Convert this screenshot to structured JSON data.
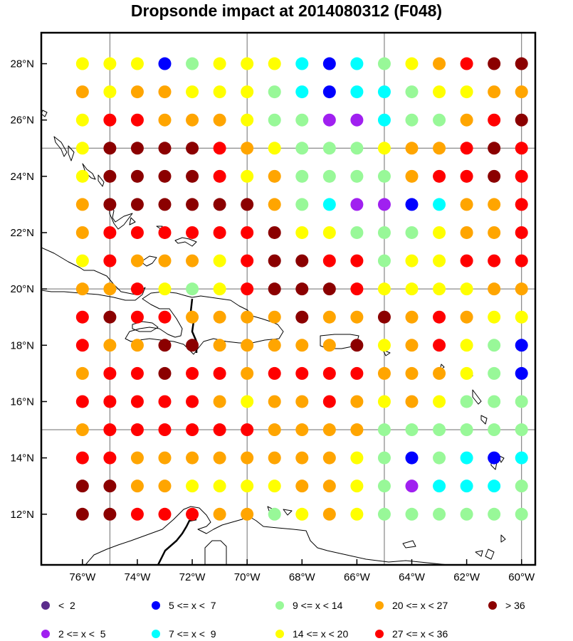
{
  "title": "Dropsonde impact at 2014080312 (F048)",
  "map": {
    "lon_range": [
      -77.5,
      -59.5
    ],
    "lat_range": [
      10.2,
      29.1
    ],
    "x_ticks": [
      {
        "lon": -76,
        "label": "76°W"
      },
      {
        "lon": -74,
        "label": "74°W"
      },
      {
        "lon": -72,
        "label": "72°W"
      },
      {
        "lon": -70,
        "label": "70°W"
      },
      {
        "lon": -68,
        "label": "68°W"
      },
      {
        "lon": -66,
        "label": "66°W"
      },
      {
        "lon": -64,
        "label": "64°W"
      },
      {
        "lon": -62,
        "label": "62°W"
      },
      {
        "lon": -60,
        "label": "60°W"
      }
    ],
    "y_ticks": [
      {
        "lat": 28,
        "label": "28°N"
      },
      {
        "lat": 26,
        "label": "26°N"
      },
      {
        "lat": 24,
        "label": "24°N"
      },
      {
        "lat": 22,
        "label": "22°N"
      },
      {
        "lat": 20,
        "label": "20°N"
      },
      {
        "lat": 18,
        "label": "18°N"
      },
      {
        "lat": 16,
        "label": "16°N"
      },
      {
        "lat": 14,
        "label": "14°N"
      },
      {
        "lat": 12,
        "label": "12°N"
      }
    ],
    "grid_lons": [
      -75,
      -70,
      -65,
      -60
    ],
    "grid_lats": [
      25,
      20,
      15
    ]
  },
  "categories": {
    "A": {
      "label": "<  2",
      "color": "#5b2d8c"
    },
    "B": {
      "label": "2 <= x <  5",
      "color": "#a020f0"
    },
    "C": {
      "label": "5 <= x <  7",
      "color": "#0000ff"
    },
    "D": {
      "label": "7 <= x <  9",
      "color": "#00ffff"
    },
    "E": {
      "label": "9 <= x < 14",
      "color": "#98f898"
    },
    "F": {
      "label": "14 <= x < 20",
      "color": "#ffff00"
    },
    "G": {
      "label": "20 <= x < 27",
      "color": "#ffa500"
    },
    "H": {
      "label": "27 <= x < 36",
      "color": "#ff0000"
    },
    "I": {
      "label": "> 36",
      "color": "#8b0000"
    }
  },
  "legend_order": [
    [
      "A",
      "C",
      "E",
      "G",
      "I"
    ],
    [
      "B",
      "D",
      "F",
      "H"
    ]
  ],
  "dots": {
    "lons": [
      -76,
      -75,
      -74,
      -73,
      -72,
      -71,
      -70,
      -69,
      -68,
      -67,
      -66,
      -65,
      -64,
      -63,
      -62,
      -61,
      -60
    ],
    "lats": [
      28,
      27,
      26,
      25,
      24,
      23,
      22,
      21,
      20,
      19,
      18,
      17,
      16,
      15,
      14,
      13,
      12
    ],
    "rows": [
      "FFFCEFFFDCDEFGHII",
      "GFGGFFFEDCDDEFFGG",
      "FHHGGGFEEBBDEEGHI",
      "FIIIIHGFEEEFGGHIH",
      "FIIIIHFGEEEEGHHIH",
      "GIIIIIIGEDBBCDGGH",
      "GHHHHHHIFFEEEFGGH",
      "FHGGGFHIIHHEFFHHH",
      "GGHFEFHIIIHFFFFGG",
      "HIHHGGGGIGGIGHGFF",
      "HGGIIGGGGGIFGHFEC",
      "GHHIHHGHHHHGGGFEC",
      "HHHHHGFGGHGFGFEEE",
      "GHHHHHHGGGGEEEEEE",
      "HHGGGGGGGGFECEDCD",
      "IIGGFFFFGGFEBDDDE",
      "IIHHHGGEFGFEEEEEE"
    ]
  }
}
